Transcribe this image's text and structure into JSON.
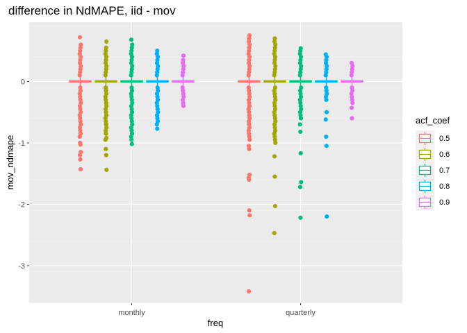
{
  "chart_data": {
    "type": "boxplot",
    "title": "difference in NdMAPE, iid - mov",
    "xlabel": "freq",
    "ylabel": "mov_ndmape",
    "categories": [
      "monthly",
      "quarterly"
    ],
    "ylim": [
      -3.6,
      0.9
    ],
    "yticks": [
      0,
      -1,
      -2,
      -3
    ],
    "ytick_labels": [
      "0",
      "-1",
      "-2",
      "-3"
    ],
    "grid": true,
    "legend": {
      "title": "acf_coef",
      "placement": "right"
    },
    "series": [
      {
        "name": "0.5",
        "color": "#F8766D",
        "monthly": {
          "median": 0.0,
          "q1": -0.01,
          "q3": 0.01,
          "whisker_low": -0.08,
          "whisker_high": 0.08,
          "points_high": [
            0.1,
            0.15,
            0.2,
            0.25,
            0.3,
            0.35,
            0.4,
            0.45,
            0.5,
            0.55,
            0.6,
            0.72
          ],
          "points_low": [
            -0.1,
            -0.15,
            -0.2,
            -0.25,
            -0.3,
            -0.35,
            -0.4,
            -0.45,
            -0.5,
            -0.55,
            -0.6,
            -0.65,
            -0.7,
            -0.75,
            -0.8,
            -0.85,
            -0.9,
            -1.0,
            -1.03,
            -1.15,
            -1.2,
            -1.27,
            -1.43
          ]
        },
        "quarterly": {
          "median": 0.0,
          "q1": -0.01,
          "q3": 0.01,
          "whisker_low": -0.08,
          "whisker_high": 0.08,
          "points_high": [
            0.1,
            0.15,
            0.2,
            0.25,
            0.3,
            0.35,
            0.4,
            0.45,
            0.5,
            0.55,
            0.6,
            0.65,
            0.7,
            0.75
          ],
          "points_low": [
            -0.1,
            -0.15,
            -0.2,
            -0.25,
            -0.3,
            -0.35,
            -0.4,
            -0.45,
            -0.5,
            -0.55,
            -0.6,
            -0.65,
            -0.7,
            -0.75,
            -0.8,
            -0.85,
            -0.9,
            -0.95,
            -1.05,
            -1.1,
            -1.52,
            -1.57,
            -1.6,
            -2.1,
            -2.18,
            -3.42
          ]
        }
      },
      {
        "name": "0.6",
        "color": "#A3A500",
        "monthly": {
          "median": 0.0,
          "q1": -0.01,
          "q3": 0.01,
          "whisker_low": -0.08,
          "whisker_high": 0.08,
          "points_high": [
            0.1,
            0.15,
            0.2,
            0.25,
            0.3,
            0.35,
            0.4,
            0.45,
            0.5,
            0.55,
            0.65
          ],
          "points_low": [
            -0.1,
            -0.15,
            -0.2,
            -0.25,
            -0.3,
            -0.35,
            -0.4,
            -0.45,
            -0.5,
            -0.55,
            -0.6,
            -0.65,
            -0.7,
            -0.75,
            -0.8,
            -0.85,
            -0.92,
            -0.95,
            -1.1,
            -1.2,
            -1.44
          ]
        },
        "quarterly": {
          "median": 0.0,
          "q1": -0.01,
          "q3": 0.01,
          "whisker_low": -0.08,
          "whisker_high": 0.08,
          "points_high": [
            0.1,
            0.15,
            0.2,
            0.25,
            0.3,
            0.35,
            0.4,
            0.45,
            0.5,
            0.55,
            0.6,
            0.65,
            0.7
          ],
          "points_low": [
            -0.1,
            -0.15,
            -0.2,
            -0.25,
            -0.3,
            -0.35,
            -0.4,
            -0.45,
            -0.5,
            -0.55,
            -0.6,
            -0.65,
            -0.7,
            -0.75,
            -0.8,
            -0.85,
            -0.9,
            -0.95,
            -1.0,
            -1.22,
            -1.55,
            -2.03,
            -2.47
          ]
        }
      },
      {
        "name": "0.7",
        "color": "#00BF7D",
        "monthly": {
          "median": 0.0,
          "q1": -0.01,
          "q3": 0.01,
          "whisker_low": -0.08,
          "whisker_high": 0.08,
          "points_high": [
            0.1,
            0.15,
            0.2,
            0.25,
            0.3,
            0.35,
            0.4,
            0.45,
            0.5,
            0.55,
            0.6,
            0.68
          ],
          "points_low": [
            -0.1,
            -0.15,
            -0.2,
            -0.25,
            -0.3,
            -0.35,
            -0.4,
            -0.45,
            -0.5,
            -0.55,
            -0.6,
            -0.65,
            -0.7,
            -0.75,
            -0.8,
            -0.85,
            -0.9,
            -0.95,
            -1.02
          ]
        },
        "quarterly": {
          "median": 0.0,
          "q1": -0.01,
          "q3": 0.01,
          "whisker_low": -0.08,
          "whisker_high": 0.08,
          "points_high": [
            0.1,
            0.15,
            0.2,
            0.25,
            0.3,
            0.35,
            0.4,
            0.45,
            0.5,
            0.54
          ],
          "points_low": [
            -0.1,
            -0.15,
            -0.2,
            -0.25,
            -0.3,
            -0.35,
            -0.4,
            -0.45,
            -0.5,
            -0.55,
            -0.6,
            -0.7,
            -0.82,
            -1.17,
            -1.64,
            -1.72,
            -2.22
          ]
        }
      },
      {
        "name": "0.8",
        "color": "#00B0F6",
        "monthly": {
          "median": 0.0,
          "q1": -0.01,
          "q3": 0.01,
          "whisker_low": -0.08,
          "whisker_high": 0.08,
          "points_high": [
            0.1,
            0.15,
            0.2,
            0.25,
            0.3,
            0.35,
            0.4,
            0.45,
            0.5
          ],
          "points_low": [
            -0.1,
            -0.15,
            -0.2,
            -0.25,
            -0.3,
            -0.35,
            -0.4,
            -0.45,
            -0.5,
            -0.55,
            -0.6,
            -0.65,
            -0.7,
            -0.77
          ]
        },
        "quarterly": {
          "median": 0.0,
          "q1": -0.01,
          "q3": 0.01,
          "whisker_low": -0.08,
          "whisker_high": 0.08,
          "points_high": [
            0.1,
            0.15,
            0.2,
            0.25,
            0.3,
            0.35,
            0.4,
            0.44
          ],
          "points_low": [
            -0.1,
            -0.15,
            -0.2,
            -0.25,
            -0.3,
            -0.5,
            -0.62,
            -0.9,
            -1.05,
            -2.2
          ]
        }
      },
      {
        "name": "0.9",
        "color": "#E76BF3",
        "monthly": {
          "median": 0.0,
          "q1": -0.01,
          "q3": 0.01,
          "whisker_low": -0.08,
          "whisker_high": 0.08,
          "points_high": [
            0.1,
            0.15,
            0.2,
            0.25,
            0.3,
            0.35,
            0.42
          ],
          "points_low": [
            -0.1,
            -0.15,
            -0.2,
            -0.25,
            -0.3,
            -0.35,
            -0.4
          ]
        },
        "quarterly": {
          "median": 0.0,
          "q1": -0.01,
          "q3": 0.01,
          "whisker_low": -0.08,
          "whisker_high": 0.08,
          "points_high": [
            0.1,
            0.15,
            0.2,
            0.25,
            0.3
          ],
          "points_low": [
            -0.1,
            -0.15,
            -0.2,
            -0.25,
            -0.3,
            -0.35,
            -0.43,
            -0.6
          ]
        }
      }
    ]
  }
}
